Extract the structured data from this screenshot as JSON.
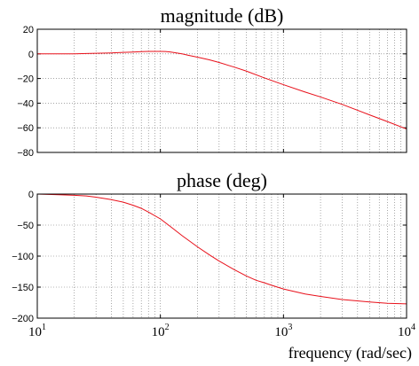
{
  "colors": {
    "curve": "#e8101a",
    "grid": "#707070",
    "axis": "#000000",
    "background": "#ffffff"
  },
  "chart_data": [
    {
      "type": "line",
      "title": "magnitude (dB)",
      "xlabel": "",
      "ylabel": "",
      "x_scale": "log",
      "xlim": [
        10,
        10000
      ],
      "ylim": [
        -80,
        20
      ],
      "y_ticks": [
        20,
        0,
        -20,
        -40,
        -60,
        -80
      ],
      "x_ticks": [
        10,
        100,
        1000,
        10000
      ],
      "x_tick_labels": [
        {
          "base": "10",
          "exp": "1"
        },
        {
          "base": "10",
          "exp": "2"
        },
        {
          "base": "10",
          "exp": "3"
        },
        {
          "base": "10",
          "exp": "4"
        }
      ],
      "grid": true,
      "series": [
        {
          "x": [
            10,
            15,
            20,
            25,
            30,
            40,
            50,
            60,
            70,
            80,
            90,
            100,
            110,
            120,
            130,
            150,
            170,
            200,
            250,
            300,
            400,
            500,
            700,
            1000,
            1500,
            2000,
            3000,
            5000,
            7000,
            10000
          ],
          "y": [
            0,
            0,
            0,
            0.3,
            0.5,
            0.8,
            1.2,
            1.5,
            1.8,
            2.0,
            2.0,
            2.0,
            1.9,
            1.6,
            1.0,
            0,
            -1.2,
            -2.7,
            -4.8,
            -7,
            -10.8,
            -14,
            -19.5,
            -25,
            -31,
            -35,
            -41,
            -49.5,
            -55,
            -61
          ]
        }
      ]
    },
    {
      "type": "line",
      "title": "phase (deg)",
      "xlabel": "frequency (rad/sec)",
      "ylabel": "",
      "x_scale": "log",
      "xlim": [
        10,
        10000
      ],
      "ylim": [
        -200,
        0
      ],
      "y_ticks": [
        0,
        -50,
        -100,
        -150,
        -200
      ],
      "x_ticks": [
        10,
        100,
        1000,
        10000
      ],
      "x_tick_labels": [
        {
          "base": "10",
          "exp": "1"
        },
        {
          "base": "10",
          "exp": "2"
        },
        {
          "base": "10",
          "exp": "3"
        },
        {
          "base": "10",
          "exp": "4"
        }
      ],
      "grid": true,
      "series": [
        {
          "x": [
            10,
            15,
            20,
            25,
            30,
            40,
            50,
            60,
            70,
            80,
            100,
            120,
            150,
            200,
            250,
            300,
            400,
            500,
            600,
            700,
            800,
            1000,
            1500,
            2000,
            3000,
            5000,
            7000,
            10000
          ],
          "y": [
            0,
            -1,
            -2,
            -3,
            -5,
            -9,
            -13,
            -18,
            -23,
            -29,
            -40,
            -52,
            -67,
            -85,
            -98,
            -108,
            -122,
            -132,
            -139,
            -143,
            -147,
            -153,
            -161,
            -165,
            -170,
            -174,
            -176,
            -177
          ]
        }
      ]
    }
  ]
}
